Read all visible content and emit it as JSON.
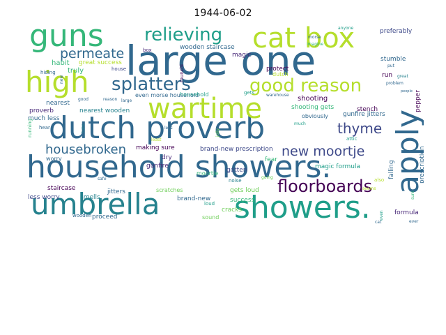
{
  "figure": {
    "title": "1944-06-02"
  },
  "colors": {
    "background": "#ffffff",
    "title": "#111111",
    "palette": [
      "#440154",
      "#482878",
      "#3e4989",
      "#31688e",
      "#26828e",
      "#1f9e89",
      "#35b779",
      "#6ece58",
      "#b5de2b",
      "#fde725"
    ]
  },
  "word_cloud": {
    "words": [
      {
        "id": "large-one",
        "text": "large one",
        "color": "#31688e"
      },
      {
        "id": "household-showers",
        "text": "household showers.",
        "color": "#31688e"
      },
      {
        "id": "dutch-proverb",
        "text": "dutch proverb",
        "color": "#31688e"
      },
      {
        "id": "umbrella",
        "text": "umbrella",
        "color": "#26828e"
      },
      {
        "id": "showers",
        "text": "showers.",
        "color": "#1f9e89"
      },
      {
        "id": "apply",
        "text": "apply",
        "color": "#31688e"
      },
      {
        "id": "guns",
        "text": "guns",
        "color": "#35b779"
      },
      {
        "id": "high",
        "text": "high",
        "color": "#b5de2b"
      },
      {
        "id": "cat-box",
        "text": "cat box",
        "color": "#b5de2b"
      },
      {
        "id": "wartime",
        "text": "wartime",
        "color": "#b5de2b"
      },
      {
        "id": "relieving",
        "text": "relieving",
        "color": "#1f9e89"
      },
      {
        "id": "splatters",
        "text": "splatters",
        "color": "#31688e"
      },
      {
        "id": "good-reason",
        "text": "good reason",
        "color": "#b5de2b"
      },
      {
        "id": "floorboards",
        "text": "floorboards",
        "color": "#440154"
      },
      {
        "id": "permeate",
        "text": "permeate",
        "color": "#31688e"
      },
      {
        "id": "housebroken",
        "text": "housebroken",
        "color": "#31688e"
      },
      {
        "id": "new-moortje",
        "text": "new moortje",
        "color": "#3e4989"
      },
      {
        "id": "thyme",
        "text": "thyme",
        "color": "#3e4989"
      },
      {
        "id": "wooden-staircase",
        "text": "wooden staircase",
        "color": "#31688e"
      },
      {
        "id": "great-success",
        "text": "great success",
        "color": "#b5de2b"
      },
      {
        "id": "habit",
        "text": "habit",
        "color": "#35b779"
      },
      {
        "id": "truly",
        "text": "truly",
        "color": "#35b779"
      },
      {
        "id": "box",
        "text": "box",
        "color": "#482878"
      },
      {
        "id": "magic",
        "text": "magic",
        "color": "#482878"
      },
      {
        "id": "protect",
        "text": "protect",
        "color": "#440154"
      },
      {
        "id": "preferably",
        "text": "preferably",
        "color": "#3e4989"
      },
      {
        "id": "stumble",
        "text": "stumble",
        "color": "#31688e"
      },
      {
        "id": "run",
        "text": "run",
        "color": "#440154"
      },
      {
        "id": "even-morse-household",
        "text": "even morse household",
        "color": "#31688e"
      },
      {
        "id": "nearest",
        "text": "nearest",
        "color": "#31688e"
      },
      {
        "id": "proverb",
        "text": "proverb",
        "color": "#482878"
      },
      {
        "id": "much-less",
        "text": "much less",
        "color": "#31688e"
      },
      {
        "id": "nearest-wooden",
        "text": "nearest wooden",
        "color": "#26828e"
      },
      {
        "id": "shooting",
        "text": "shooting",
        "color": "#440154"
      },
      {
        "id": "shooting-gets",
        "text": "shooting gets",
        "color": "#35b779"
      },
      {
        "id": "gunfire-jitters",
        "text": "gunfire jitters",
        "color": "#31688e"
      },
      {
        "id": "stench",
        "text": "stench",
        "color": "#440154"
      },
      {
        "id": "magic-formula",
        "text": "magic formula",
        "color": "#1f9e89"
      },
      {
        "id": "making-sure",
        "text": "making sure",
        "color": "#440154"
      },
      {
        "id": "brand-new-prescription",
        "text": "brand-new prescription",
        "color": "#3e4989"
      },
      {
        "id": "dry",
        "text": "dry",
        "color": "#482878"
      },
      {
        "id": "gunfire",
        "text": "gunfire",
        "color": "#482878"
      },
      {
        "id": "fear",
        "text": "fear",
        "color": "#35b779"
      },
      {
        "id": "gotten",
        "text": "gotten",
        "color": "#3e4989"
      },
      {
        "id": "staircase",
        "text": "staircase",
        "color": "#440154"
      },
      {
        "id": "less-worry",
        "text": "less worry",
        "color": "#3e4989"
      },
      {
        "id": "smells",
        "text": "smells",
        "color": "#26828e"
      },
      {
        "id": "proceed",
        "text": "proceed",
        "color": "#31688e"
      },
      {
        "id": "jitters",
        "text": "jitters",
        "color": "#31688e"
      },
      {
        "id": "scratches",
        "text": "scratches",
        "color": "#6ece58"
      },
      {
        "id": "brand-new",
        "text": "brand-new",
        "color": "#31688e"
      },
      {
        "id": "gets-loud",
        "text": "gets loud",
        "color": "#6ece58"
      },
      {
        "id": "success",
        "text": "success",
        "color": "#35b779"
      },
      {
        "id": "cracks",
        "text": "cracks",
        "color": "#6ece58"
      },
      {
        "id": "sound",
        "text": "sound",
        "color": "#6ece58"
      },
      {
        "id": "formula",
        "text": "formula",
        "color": "#482878"
      },
      {
        "id": "pepper",
        "text": "pepper",
        "color": "#440154"
      },
      {
        "id": "prescription",
        "text": "prescription",
        "color": "#31688e"
      },
      {
        "id": "falling",
        "text": "falling",
        "color": "#31688e"
      },
      {
        "id": "obviously",
        "text": "obviously",
        "color": "#31688e"
      },
      {
        "id": "worry",
        "text": "worry",
        "color": "#31688e"
      },
      {
        "id": "wooden",
        "text": "wooden",
        "color": "#31688e"
      },
      {
        "id": "moortje",
        "text": "moortje",
        "color": "#35b779"
      },
      {
        "id": "noise",
        "text": "noise",
        "color": "#26828e"
      },
      {
        "id": "loud",
        "text": "loud",
        "color": "#1f9e89"
      },
      {
        "id": "dutch",
        "text": "dutch",
        "color": "#b5de2b"
      },
      {
        "id": "house",
        "text": "house",
        "color": "#3e4989"
      },
      {
        "id": "hiding",
        "text": "hiding",
        "color": "#31688e"
      },
      {
        "id": "anyone",
        "text": "anyone",
        "color": "#1f9e89"
      },
      {
        "id": "morse",
        "text": "morse",
        "color": "#31688e"
      },
      {
        "id": "imagine",
        "text": "imagine",
        "color": "#35b779"
      },
      {
        "id": "put",
        "text": "put",
        "color": "#31688e"
      },
      {
        "id": "great",
        "text": "great",
        "color": "#26828e"
      },
      {
        "id": "problem",
        "text": "problem",
        "color": "#31688e"
      },
      {
        "id": "people",
        "text": "people",
        "color": "#31688e"
      },
      {
        "id": "warehouse",
        "text": "warehouse",
        "color": "#31688e"
      },
      {
        "id": "gets",
        "text": "gets",
        "color": "#1f9e89"
      },
      {
        "id": "much",
        "text": "much",
        "color": "#1f9e89"
      },
      {
        "id": "attic",
        "text": "attic",
        "color": "#1f9e89"
      },
      {
        "id": "cat",
        "text": "cat",
        "color": "#31688e"
      },
      {
        "id": "ever",
        "text": "ever",
        "color": "#31688e"
      },
      {
        "id": "even",
        "text": "even",
        "color": "#1f9e89"
      },
      {
        "id": "also",
        "text": "also",
        "color": "#b5de2b"
      },
      {
        "id": "hear",
        "text": "hear",
        "color": "#31688e"
      },
      {
        "id": "running",
        "text": "running",
        "color": "#35b779"
      },
      {
        "id": "safe",
        "text": "safe",
        "color": "#31688e"
      },
      {
        "id": "take",
        "text": "take",
        "color": "#26828e"
      },
      {
        "id": "less",
        "text": "less",
        "color": "#31688e"
      },
      {
        "id": "seems",
        "text": "seems",
        "color": "#b5de2b"
      },
      {
        "id": "large",
        "text": "large",
        "color": "#31688e"
      },
      {
        "id": "reason",
        "text": "reason",
        "color": "#31688e"
      },
      {
        "id": "good",
        "text": "good",
        "color": "#31688e"
      },
      {
        "id": "new",
        "text": "new",
        "color": "#31688e"
      },
      {
        "id": "munchi",
        "text": "munchi",
        "color": "#440154"
      },
      {
        "id": "going",
        "text": "going",
        "color": "#6ece58"
      },
      {
        "id": "sure",
        "text": "sure",
        "color": "#35b779"
      },
      {
        "id": "least",
        "text": "least",
        "color": "#b5de2b"
      },
      {
        "id": "household",
        "text": "household",
        "color": "#1f9e89"
      },
      {
        "id": "jolly",
        "text": "jolly",
        "color": "#6ece58"
      }
    ]
  }
}
